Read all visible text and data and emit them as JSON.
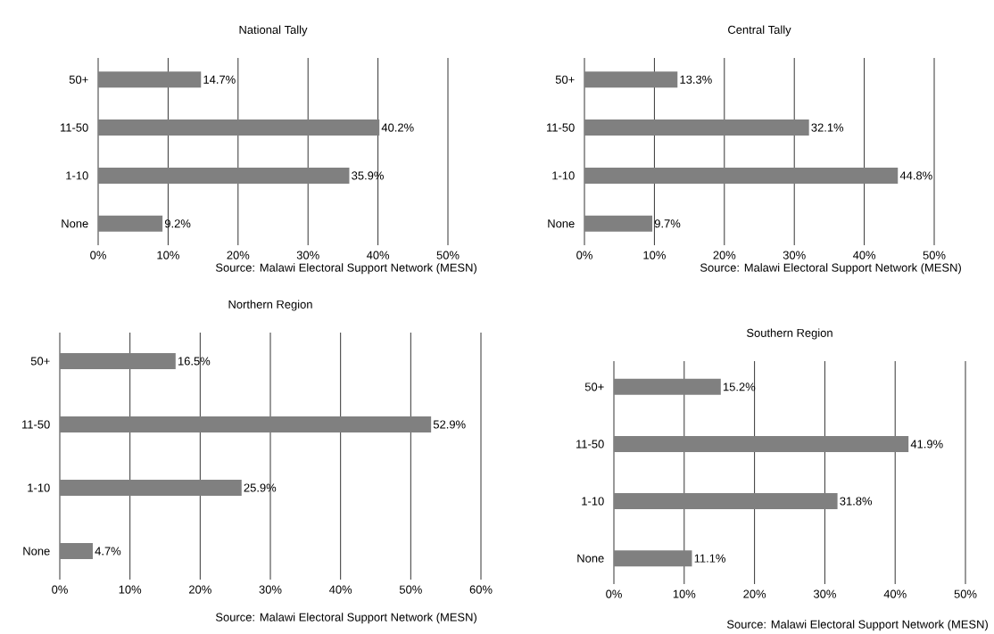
{
  "chart_data": [
    {
      "type": "bar",
      "orientation": "horizontal",
      "title": "National Tally",
      "categories": [
        "50+",
        "11-50",
        "1-10",
        "None"
      ],
      "values": [
        14.7,
        40.2,
        35.9,
        9.2
      ],
      "value_labels": [
        "14.7%",
        "40.2%",
        "35.9%",
        "9.2%"
      ],
      "color": "#808080",
      "xlim": [
        0,
        50
      ],
      "xticks": [
        {
          "value": 0,
          "label": "0%"
        },
        {
          "value": 10,
          "label": "10%"
        },
        {
          "value": 20,
          "label": "20%"
        },
        {
          "value": 30,
          "label": "30%"
        },
        {
          "value": 40,
          "label": "40%"
        },
        {
          "value": 50,
          "label": "50%"
        }
      ],
      "grid": "x",
      "annotations": [
        "Source: Malawi Electoral Support Network (MESN)"
      ]
    },
    {
      "type": "bar",
      "orientation": "horizontal",
      "title": "Central Tally",
      "categories": [
        "50+",
        "11-50",
        "1-10",
        "None"
      ],
      "values": [
        13.3,
        32.1,
        44.8,
        9.7
      ],
      "value_labels": [
        "13.3%",
        "32.1%",
        "44.8%",
        "9.7%"
      ],
      "color": "#808080",
      "xlim": [
        0,
        50
      ],
      "xticks": [
        {
          "value": 0,
          "label": "0%"
        },
        {
          "value": 10,
          "label": "10%"
        },
        {
          "value": 20,
          "label": "20%"
        },
        {
          "value": 30,
          "label": "30%"
        },
        {
          "value": 40,
          "label": "40%"
        },
        {
          "value": 50,
          "label": "50%"
        }
      ],
      "grid": "x",
      "annotations": [
        "Source: Malawi Electoral Support Network (MESN)"
      ]
    },
    {
      "type": "bar",
      "orientation": "horizontal",
      "title": "Northern Region",
      "categories": [
        "50+",
        "11-50",
        "1-10",
        "None"
      ],
      "values": [
        16.5,
        52.9,
        25.9,
        4.7
      ],
      "value_labels": [
        "16.5%",
        "52.9%",
        "25.9%",
        "4.7%"
      ],
      "color": "#808080",
      "xlim": [
        0,
        60
      ],
      "xticks": [
        {
          "value": 0,
          "label": "0%"
        },
        {
          "value": 10,
          "label": "10%"
        },
        {
          "value": 20,
          "label": "20%"
        },
        {
          "value": 30,
          "label": "30%"
        },
        {
          "value": 40,
          "label": "40%"
        },
        {
          "value": 50,
          "label": "50%"
        },
        {
          "value": 60,
          "label": "60%"
        }
      ],
      "grid": "x",
      "annotations": [
        "Source: Malawi Electoral Support Network (MESN)"
      ]
    },
    {
      "type": "bar",
      "orientation": "horizontal",
      "title": "Southern Region",
      "categories": [
        "50+",
        "11-50",
        "1-10",
        "None"
      ],
      "values": [
        15.2,
        41.9,
        31.8,
        11.1
      ],
      "value_labels": [
        "15.2%",
        "41.9%",
        "31.8%",
        "11.1%"
      ],
      "color": "#808080",
      "xlim": [
        0,
        50
      ],
      "xticks": [
        {
          "value": 0,
          "label": "0%"
        },
        {
          "value": 10,
          "label": "10%"
        },
        {
          "value": 20,
          "label": "20%"
        },
        {
          "value": 30,
          "label": "30%"
        },
        {
          "value": 40,
          "label": "40%"
        },
        {
          "value": 50,
          "label": "50%"
        }
      ],
      "grid": "x",
      "annotations": [
        "Source: Malawi Electoral Support Network (MESN)"
      ]
    }
  ]
}
